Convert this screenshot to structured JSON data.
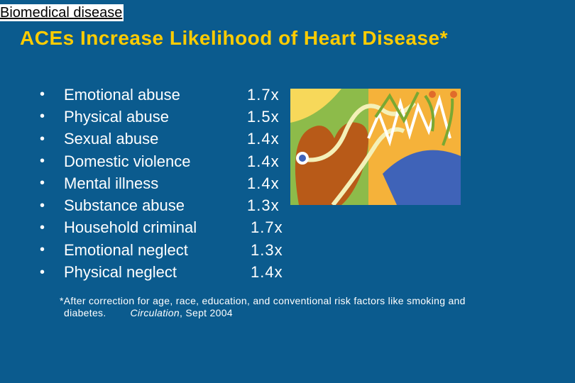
{
  "section_label": "Biomedical disease",
  "title": "ACEs Increase Likelihood of Heart Disease*",
  "items": [
    {
      "label": "Emotional abuse",
      "value": "1.7x"
    },
    {
      "label": "Physical abuse",
      "value": "1.5x"
    },
    {
      "label": "Sexual abuse",
      "value": "1.4x"
    },
    {
      "label": "Domestic violence",
      "value": "1.4x"
    },
    {
      "label": "Mental illness",
      "value": "1.4x"
    },
    {
      "label": "Substance abuse",
      "value": "1.3x"
    },
    {
      "label": "Household criminal",
      "value": "1.7x"
    },
    {
      "label": "Emotional neglect",
      "value": "1.3x"
    },
    {
      "label": "Physical neglect",
      "value": "1.4x"
    }
  ],
  "bullet": "•",
  "footnote": {
    "text_line1": "*After correction for age, race, education, and conventional risk factors like smoking and",
    "text_line2": "diabetes.",
    "journal": "Circulation",
    "date": ", Sept 2004"
  },
  "colors": {
    "background": "#0b5b8e",
    "title": "#ffcc00",
    "text": "#ffffff"
  }
}
